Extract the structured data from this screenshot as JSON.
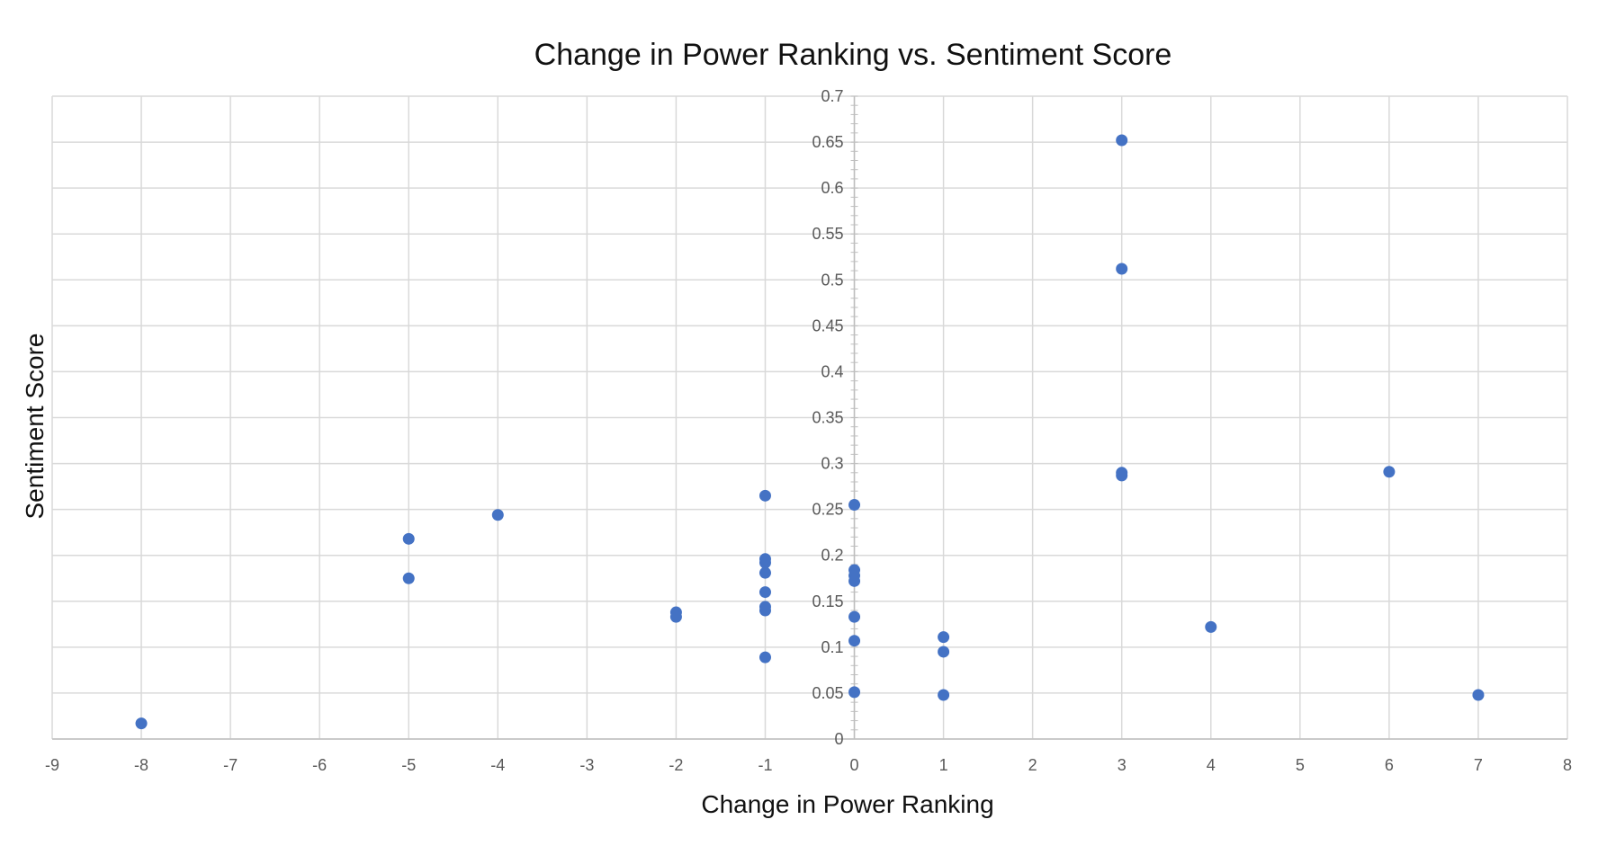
{
  "chart_data": {
    "type": "scatter",
    "title": "Change in Power Ranking vs. Sentiment Score",
    "xlabel": "Change in Power Ranking",
    "ylabel": "Sentiment Score",
    "xlim": [
      -9,
      8
    ],
    "ylim": [
      0,
      0.7
    ],
    "x_ticks": [
      "-9",
      "-8",
      "-7",
      "-6",
      "-5",
      "-4",
      "-3",
      "-2",
      "-1",
      "0",
      "1",
      "2",
      "3",
      "4",
      "5",
      "6",
      "7",
      "8"
    ],
    "y_ticks": [
      "0",
      "0.05",
      "0.1",
      "0.15",
      "0.2",
      "0.25",
      "0.3",
      "0.35",
      "0.4",
      "0.45",
      "0.5",
      "0.55",
      "0.6",
      "0.65",
      "0.7"
    ],
    "grid": true,
    "legend": "none",
    "marker_color": "#4472C4",
    "series": [
      {
        "points": [
          {
            "x": -8,
            "y": 0.017
          },
          {
            "x": -5,
            "y": 0.218
          },
          {
            "x": -5,
            "y": 0.175
          },
          {
            "x": -4,
            "y": 0.244
          },
          {
            "x": -2,
            "y": 0.138
          },
          {
            "x": -2,
            "y": 0.133
          },
          {
            "x": -1,
            "y": 0.265
          },
          {
            "x": -1,
            "y": 0.196
          },
          {
            "x": -1,
            "y": 0.192
          },
          {
            "x": -1,
            "y": 0.181
          },
          {
            "x": -1,
            "y": 0.16
          },
          {
            "x": -1,
            "y": 0.144
          },
          {
            "x": -1,
            "y": 0.14
          },
          {
            "x": -1,
            "y": 0.089
          },
          {
            "x": 0,
            "y": 0.255
          },
          {
            "x": 0,
            "y": 0.184
          },
          {
            "x": 0,
            "y": 0.178
          },
          {
            "x": 0,
            "y": 0.172
          },
          {
            "x": 0,
            "y": 0.133
          },
          {
            "x": 0,
            "y": 0.107
          },
          {
            "x": 0,
            "y": 0.051
          },
          {
            "x": 1,
            "y": 0.111
          },
          {
            "x": 1,
            "y": 0.095
          },
          {
            "x": 1,
            "y": 0.048
          },
          {
            "x": 3,
            "y": 0.652
          },
          {
            "x": 3,
            "y": 0.512
          },
          {
            "x": 3,
            "y": 0.29
          },
          {
            "x": 3,
            "y": 0.287
          },
          {
            "x": 4,
            "y": 0.122
          },
          {
            "x": 6,
            "y": 0.291
          },
          {
            "x": 7,
            "y": 0.048
          }
        ]
      }
    ]
  }
}
